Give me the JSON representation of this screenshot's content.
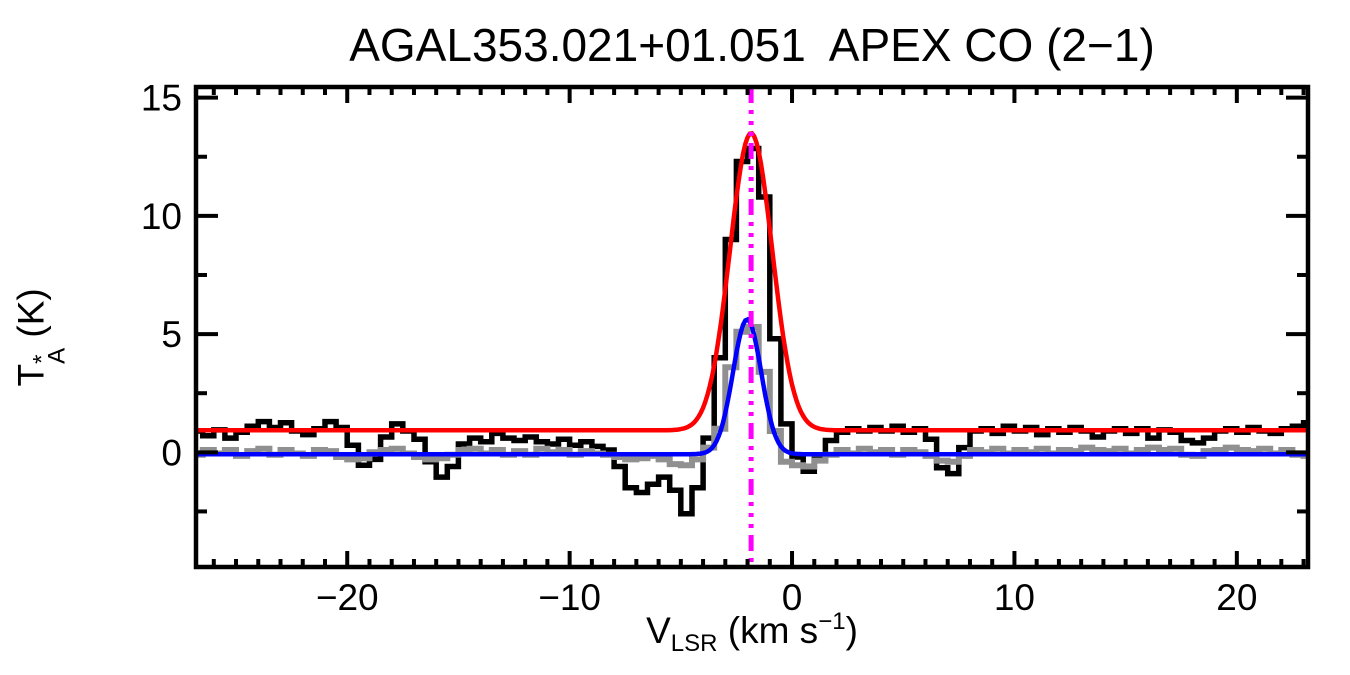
{
  "chart_data": {
    "type": "line",
    "title": "AGAL353.021+01.051  APEX CO (2−1)",
    "xlabel_parts": {
      "main": "V",
      "sub": "LSR",
      "mid": " (km s",
      "sup": "−1",
      "end": ")"
    },
    "ylabel_parts": {
      "main": "T",
      "sup": "*",
      "sub": "A",
      "rest": " (K)"
    },
    "xlim": [
      -26.8,
      23.2
    ],
    "ylim": [
      -4.85,
      15.45
    ],
    "x_major_ticks": [
      -20,
      -10,
      0,
      10,
      20
    ],
    "x_minor_step": 1,
    "y_major_ticks": [
      0,
      5,
      10,
      15
    ],
    "y_minor_ticks": [
      -2.5,
      2.5,
      7.5,
      12.5
    ],
    "grid": false,
    "legend": "none",
    "axis_color": "#000000",
    "series": [
      {
        "name": "observed-spectrum",
        "style": "histogram",
        "color": "#000000",
        "width": 5.5,
        "v_start": -26.75,
        "dv": 0.5,
        "values": [
          0.9,
          0.7,
          0.95,
          0.6,
          0.85,
          1.1,
          1.3,
          1.05,
          1.25,
          0.9,
          0.75,
          1.0,
          1.3,
          1.05,
          0.3,
          -0.55,
          -0.3,
          0.65,
          1.2,
          0.9,
          0.55,
          -0.4,
          -1.05,
          -0.6,
          0.35,
          0.6,
          0.45,
          0.8,
          0.6,
          0.5,
          0.65,
          0.45,
          0.35,
          0.55,
          0.3,
          0.45,
          0.25,
          0.1,
          -0.6,
          -1.5,
          -1.7,
          -1.35,
          -1.05,
          -1.6,
          -2.6,
          -1.5,
          0.6,
          4.0,
          9.0,
          12.3,
          12.85,
          10.8,
          4.8,
          1.2,
          -0.2,
          -0.8,
          -0.3,
          0.5,
          0.85,
          1.0,
          0.9,
          1.05,
          0.9,
          1.1,
          0.85,
          1.0,
          0.55,
          -0.65,
          -0.9,
          0.2,
          0.9,
          1.0,
          0.8,
          1.1,
          0.9,
          1.05,
          0.75,
          1.0,
          0.85,
          1.05,
          0.9,
          0.65,
          0.9,
          1.0,
          0.8,
          1.0,
          0.6,
          0.95,
          0.85,
          0.5,
          0.4,
          0.6,
          0.9,
          1.0,
          0.85,
          1.05,
          0.9,
          0.8,
          1.0,
          1.1,
          1.25
        ]
      },
      {
        "name": "offset-spectrum",
        "style": "histogram",
        "color": "#909090",
        "width": 6,
        "v_start": -26.75,
        "dv": 0.5,
        "values": [
          -0.1,
          0.1,
          -0.05,
          0.1,
          -0.15,
          0.05,
          0.15,
          -0.1,
          0.1,
          -0.05,
          -0.15,
          0.1,
          0.05,
          -0.2,
          -0.3,
          -0.25,
          0.0,
          0.1,
          0.15,
          -0.05,
          -0.2,
          -0.3,
          -0.25,
          -0.1,
          0.1,
          0.15,
          -0.05,
          0.1,
          -0.1,
          0.05,
          -0.1,
          0.15,
          0.0,
          0.1,
          -0.1,
          0.05,
          -0.05,
          -0.1,
          -0.2,
          -0.3,
          -0.25,
          -0.15,
          -0.3,
          -0.5,
          -0.55,
          -0.3,
          0.2,
          1.0,
          3.6,
          5.1,
          5.3,
          3.4,
          0.9,
          -0.4,
          -0.55,
          -0.6,
          -0.35,
          -0.1,
          0.1,
          -0.05,
          0.15,
          0.0,
          0.1,
          -0.1,
          0.1,
          0.0,
          -0.15,
          -0.35,
          -0.4,
          -0.15,
          0.1,
          0.0,
          0.15,
          -0.05,
          0.1,
          0.0,
          0.15,
          -0.05,
          0.1,
          0.05,
          0.2,
          0.1,
          0.05,
          0.15,
          -0.05,
          0.1,
          0.2,
          0.1,
          0.15,
          -0.1,
          -0.15,
          0.05,
          0.1,
          0.2,
          0.1,
          0.05,
          0.15,
          -0.05,
          0.1,
          -0.1,
          -0.15
        ]
      },
      {
        "name": "gaussian-fit-main",
        "style": "gaussian",
        "color": "#ff0000",
        "width": 4.5,
        "baseline": 0.93,
        "amplitude": 12.57,
        "center": -1.84,
        "fwhm": 2.24
      },
      {
        "name": "gaussian-fit-offset",
        "style": "gaussian",
        "color": "#0000ff",
        "width": 4.5,
        "baseline": -0.08,
        "amplitude": 5.7,
        "center": -2.02,
        "fwhm": 1.5
      }
    ],
    "vline": {
      "name": "systemic-velocity-marker",
      "x": -1.84,
      "color": "#ff00ff",
      "width": 5,
      "dash": [
        16,
        7,
        4,
        7,
        4,
        7,
        4,
        7
      ]
    }
  }
}
